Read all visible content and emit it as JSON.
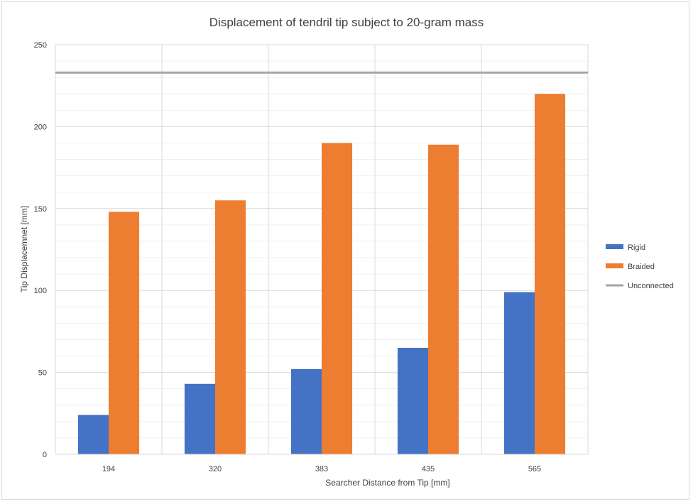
{
  "chart_data": {
    "type": "bar",
    "title": "Displacement of tendril tip subject to 20-gram mass",
    "xlabel": "Searcher Distance from Tip [mm]",
    "ylabel": "Tip Displacemnet [mm]",
    "categories": [
      "194",
      "320",
      "383",
      "435",
      "565"
    ],
    "ylim": [
      0,
      250
    ],
    "yticks": [
      0,
      50,
      100,
      150,
      200,
      250
    ],
    "minor_gridline_step": 10,
    "series": [
      {
        "name": "Rigid",
        "values": [
          24,
          43,
          52,
          65,
          99
        ],
        "color": "#4472C4"
      },
      {
        "name": "Braided",
        "values": [
          148,
          155,
          190,
          189,
          220
        ],
        "color": "#ED7D31"
      }
    ],
    "reference_lines": [
      {
        "name": "Unconnected",
        "value": 233,
        "color": "#A5A5A5"
      }
    ],
    "legend_position": "right",
    "grid": true
  }
}
